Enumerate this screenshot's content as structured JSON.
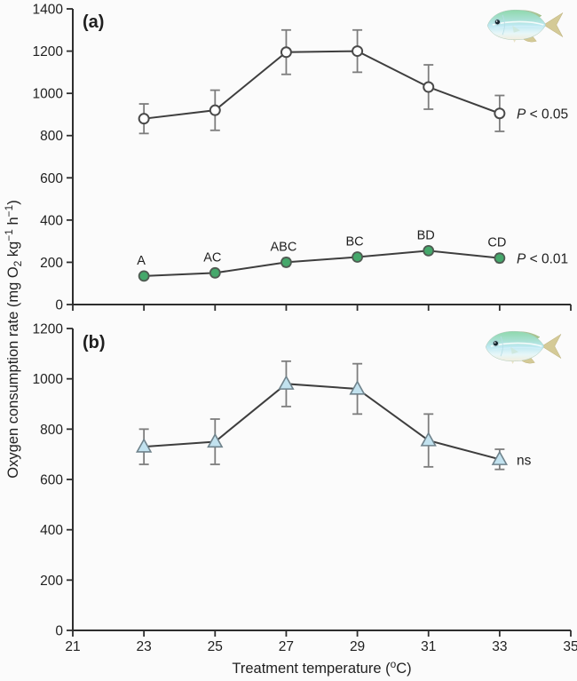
{
  "figure": {
    "y_axis_label_segments": [
      {
        "t": "Oxygen consumption rate (mg O",
        "style": "normal"
      },
      {
        "t": "2",
        "style": "sub"
      },
      {
        "t": " kg",
        "style": "normal"
      },
      {
        "t": "−1",
        "style": "sup"
      },
      {
        "t": " h",
        "style": "normal"
      },
      {
        "t": "−1",
        "style": "sup"
      },
      {
        "t": ")",
        "style": "normal"
      }
    ],
    "x_axis_label_segments": [
      {
        "t": "Treatment temperature (",
        "style": "normal"
      },
      {
        "t": "o",
        "style": "sup"
      },
      {
        "t": "C)",
        "style": "normal"
      }
    ]
  },
  "colors": {
    "background": "#fbfbfb",
    "axis": "#2e2e2e",
    "line": "#3e3e3e",
    "text": "#1f1f1f",
    "error_bar": "#7d7d7d",
    "open_circle_fill": "#ffffff",
    "open_circle_stroke": "#4a4a4a",
    "green_marker_fill": "#45a86b",
    "green_marker_stroke": "#4f5b52",
    "triangle_fill": "#c2e2ef",
    "triangle_stroke": "#70838c"
  },
  "chart_data": [
    {
      "type": "line",
      "panel_label": "(a)",
      "x_values": [
        23,
        25,
        27,
        29,
        31,
        33
      ],
      "xlim": [
        21,
        35
      ],
      "ylim": [
        0,
        1400
      ],
      "ytick_step": 200,
      "xticks": [
        21,
        23,
        25,
        27,
        29,
        31,
        33,
        35
      ],
      "xtick_labels": [],
      "grid": false,
      "series": [
        {
          "name": "active-rate-open-circles",
          "marker": "open-circle",
          "values": [
            880,
            920,
            1195,
            1200,
            1030,
            905
          ],
          "errors": [
            70,
            95,
            105,
            100,
            105,
            85
          ],
          "point_labels": [],
          "annotation": {
            "italic_part": "P",
            "text_part": " < 0.05"
          }
        },
        {
          "name": "resting-rate-green-circles",
          "marker": "green-circle",
          "values": [
            135,
            150,
            200,
            225,
            255,
            220
          ],
          "errors": [
            12,
            14,
            20,
            16,
            14,
            20
          ],
          "point_labels": [
            "A",
            "AC",
            "ABC",
            "BC",
            "BD",
            "CD"
          ],
          "annotation": {
            "italic_part": "P",
            "text_part": " < 0.01"
          }
        }
      ]
    },
    {
      "type": "line",
      "panel_label": "(b)",
      "x_values": [
        23,
        25,
        27,
        29,
        31,
        33
      ],
      "xlim": [
        21,
        35
      ],
      "ylim": [
        0,
        1200
      ],
      "ytick_step": 200,
      "xticks": [
        21,
        23,
        25,
        27,
        29,
        31,
        33,
        35
      ],
      "xtick_labels": [
        "21",
        "23",
        "25",
        "27",
        "29",
        "31",
        "33",
        "35"
      ],
      "grid": false,
      "series": [
        {
          "name": "rate-blue-triangles",
          "marker": "blue-triangle",
          "values": [
            730,
            750,
            980,
            960,
            755,
            680
          ],
          "errors": [
            70,
            90,
            90,
            100,
            105,
            40
          ],
          "point_labels": [],
          "annotation": {
            "italic_part": "",
            "text_part": "ns"
          }
        }
      ]
    }
  ]
}
